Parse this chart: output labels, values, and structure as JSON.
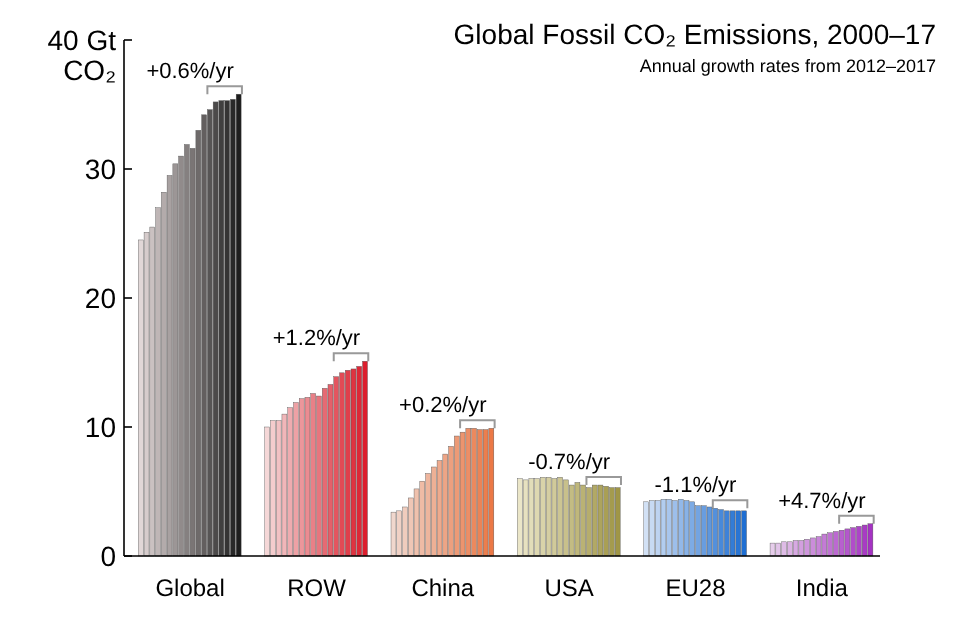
{
  "chart_data": {
    "type": "bar",
    "title": "Global Fossil CO₂ Emissions, 2000–17",
    "subtitle": "Annual growth rates from 2012–2017",
    "ylabel": "CO₂",
    "categories": [
      "Global",
      "ROW",
      "China",
      "USA",
      "EU28",
      "India"
    ],
    "ylim": [
      0,
      40
    ],
    "yticks": [
      0,
      10,
      20,
      30,
      {
        "value": 40,
        "label": "40 Gt"
      }
    ],
    "grid": false,
    "series": [
      {
        "values": [
          24.5,
          10.0,
          3.4,
          6.0,
          4.2,
          1.0
        ],
        "colors": [
          "#e1d7d7",
          "#f5d7d7",
          "#f0d7cd",
          "#ebe6c8",
          "#d2e1f5",
          "#e6cdeb"
        ]
      },
      {
        "values": [
          25.1,
          10.5,
          3.5,
          5.9,
          4.3,
          1.0
        ],
        "colors": [
          "#d6cccc",
          "#f4cccd",
          "#f0d1c5",
          "#e7e1c0",
          "#c7daf3",
          "#e2c4e9"
        ]
      },
      {
        "values": [
          25.5,
          10.5,
          3.8,
          6.0,
          4.3,
          1.1
        ],
        "colors": [
          "#cac1c1",
          "#f2c1c3",
          "#f0ccbd",
          "#e2ddb9",
          "#bdd3f1",
          "#debbe6"
        ]
      },
      {
        "values": [
          27.0,
          11.0,
          4.5,
          6.0,
          4.4,
          1.1
        ],
        "colors": [
          "#bfb6b6",
          "#f1b6b9",
          "#efc6b5",
          "#ded8b1",
          "#b2cdef",
          "#dbb2e4"
        ]
      },
      {
        "values": [
          28.2,
          11.5,
          5.2,
          6.1,
          4.4,
          1.2
        ],
        "colors": [
          "#b3abab",
          "#efabaf",
          "#efc1ad",
          "#d9d3a9",
          "#a8c6ed",
          "#d7a9e2"
        ]
      },
      {
        "values": [
          29.5,
          11.9,
          5.8,
          6.1,
          4.3,
          1.2
        ],
        "colors": [
          "#a8a1a1",
          "#eea1a5",
          "#efbba5",
          "#d5cea2",
          "#9dbfeb",
          "#d39fdf"
        ]
      },
      {
        "values": [
          30.4,
          12.2,
          6.4,
          6.0,
          4.4,
          1.3
        ],
        "colors": [
          "#9c9696",
          "#ec969b",
          "#eeb59d",
          "#d1ca9a",
          "#92b8e9",
          "#cf96dd"
        ]
      },
      {
        "values": [
          31.0,
          12.3,
          6.9,
          6.1,
          4.3,
          1.4
        ],
        "colors": [
          "#918b8b",
          "#eb8b91",
          "#eeb095",
          "#ccc592",
          "#88b2e7",
          "#cb8ddb"
        ]
      },
      {
        "values": [
          31.9,
          12.6,
          7.4,
          5.9,
          4.2,
          1.5
        ],
        "colors": [
          "#858080",
          "#e98087",
          "#eeaa8d",
          "#c8c08b",
          "#7dabe5",
          "#c784d8"
        ]
      },
      {
        "values": [
          31.6,
          12.4,
          7.9,
          5.5,
          3.9,
          1.7
        ],
        "colors": [
          "#7a7575",
          "#e8757d",
          "#eda586",
          "#c3bc83",
          "#73a4e2",
          "#c47bd6"
        ]
      },
      {
        "values": [
          33.0,
          13.0,
          8.5,
          5.7,
          3.9,
          1.8
        ],
        "colors": [
          "#6e6a6a",
          "#e66a73",
          "#ed9f7e",
          "#bfb77b",
          "#689de0",
          "#c072d3"
        ]
      },
      {
        "values": [
          34.2,
          13.3,
          9.3,
          5.5,
          3.8,
          1.9
        ],
        "colors": [
          "#635f5f",
          "#e55f69",
          "#ed9a76",
          "#bab274",
          "#5e97de",
          "#bc69d1"
        ]
      },
      {
        "values": [
          34.6,
          13.9,
          9.6,
          5.3,
          3.7,
          2.0
        ],
        "colors": [
          "#575555",
          "#e3555f",
          "#ec946e",
          "#b6ad6c",
          "#5390dc",
          "#b860cf"
        ]
      },
      {
        "values": [
          35.2,
          14.2,
          9.9,
          5.5,
          3.6,
          2.1
        ],
        "colors": [
          "#4c4a4a",
          "#e24a55",
          "#ec8e66",
          "#b2a965",
          "#4889da",
          "#b457cc"
        ]
      },
      {
        "values": [
          35.3,
          14.4,
          9.9,
          5.5,
          3.5,
          2.2
        ],
        "colors": [
          "#403f3f",
          "#e03f4b",
          "#ec895e",
          "#ada45d",
          "#3e82d8",
          "#b14dca"
        ]
      },
      {
        "values": [
          35.3,
          14.5,
          9.8,
          5.4,
          3.5,
          2.3
        ],
        "colors": [
          "#353434",
          "#df3441",
          "#eb8356",
          "#a99f55",
          "#337cd6",
          "#ad44c8"
        ]
      },
      {
        "values": [
          35.4,
          14.7,
          9.8,
          5.3,
          3.5,
          2.4
        ],
        "colors": [
          "#292929",
          "#dd2937",
          "#eb7e4e",
          "#a49b4e",
          "#2975d4",
          "#a93bc5"
        ]
      },
      {
        "values": [
          35.8,
          15.1,
          9.9,
          5.3,
          3.5,
          2.5
        ],
        "colors": [
          "#1e1e1e",
          "#dc1e2d",
          "#eb7846",
          "#a09646",
          "#1e6ed2",
          "#a532c3"
        ]
      }
    ],
    "annotations": [
      "+0.6%/yr",
      "+1.2%/yr",
      "+0.2%/yr",
      "-0.7%/yr",
      "-1.1%/yr",
      "+4.7%/yr"
    ]
  }
}
